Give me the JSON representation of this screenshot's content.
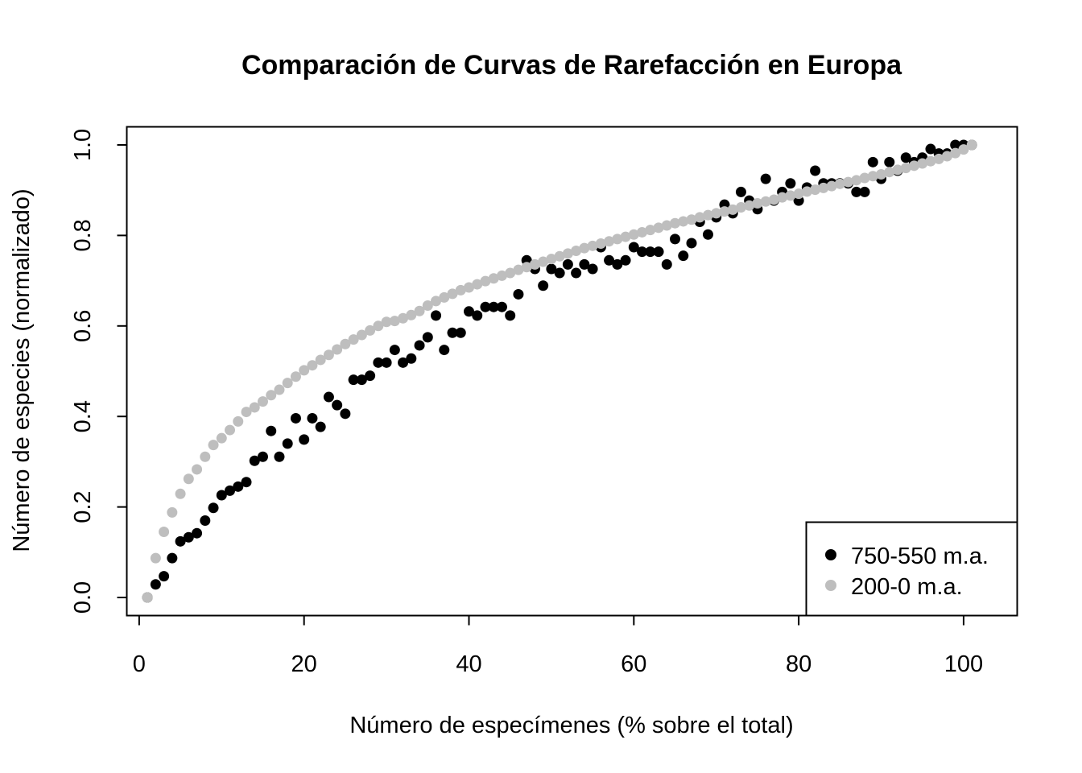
{
  "chart_data": {
    "type": "scatter",
    "title": "Comparación de Curvas de Rarefacción en Europa",
    "xlabel": "Número de especímenes (% sobre el total)",
    "ylabel": "Número de especies (normalizado)",
    "xlim": [
      -1.5,
      106.5
    ],
    "ylim": [
      -0.04,
      1.04
    ],
    "x_ticks": [
      0,
      20,
      40,
      60,
      80,
      100
    ],
    "x_tick_labels": [
      "0",
      "20",
      "40",
      "60",
      "80",
      "100"
    ],
    "y_ticks": [
      0.0,
      0.2,
      0.4,
      0.6,
      0.8,
      1.0
    ],
    "y_tick_labels": [
      "0.0",
      "0.2",
      "0.4",
      "0.6",
      "0.8",
      "1.0"
    ],
    "grid": false,
    "legend_position": "bottom-right",
    "series": [
      {
        "name": "750-550 m.a.",
        "color": "#000000",
        "x": [
          1,
          2,
          3,
          4,
          5,
          6,
          7,
          8,
          9,
          10,
          11,
          12,
          13,
          14,
          15,
          16,
          17,
          18,
          19,
          20,
          21,
          22,
          23,
          24,
          25,
          26,
          27,
          28,
          29,
          30,
          31,
          32,
          33,
          34,
          35,
          36,
          37,
          38,
          39,
          40,
          41,
          42,
          43,
          44,
          45,
          46,
          47,
          48,
          49,
          50,
          51,
          52,
          53,
          54,
          55,
          56,
          57,
          58,
          59,
          60,
          61,
          62,
          63,
          64,
          65,
          66,
          67,
          68,
          69,
          70,
          71,
          72,
          73,
          74,
          75,
          76,
          77,
          78,
          79,
          80,
          81,
          82,
          83,
          84,
          85,
          86,
          87,
          88,
          89,
          90,
          91,
          92,
          93,
          94,
          95,
          96,
          97,
          98,
          99,
          100,
          101
        ],
        "values": [
          0.0,
          0.029,
          0.047,
          0.087,
          0.124,
          0.133,
          0.142,
          0.17,
          0.198,
          0.226,
          0.236,
          0.245,
          0.255,
          0.302,
          0.311,
          0.368,
          0.311,
          0.34,
          0.396,
          0.349,
          0.396,
          0.377,
          0.443,
          0.425,
          0.406,
          0.481,
          0.481,
          0.49,
          0.519,
          0.519,
          0.547,
          0.519,
          0.528,
          0.557,
          0.575,
          0.623,
          0.547,
          0.585,
          0.585,
          0.632,
          0.623,
          0.642,
          0.642,
          0.642,
          0.623,
          0.67,
          0.745,
          0.726,
          0.689,
          0.726,
          0.717,
          0.736,
          0.717,
          0.736,
          0.726,
          0.774,
          0.745,
          0.736,
          0.745,
          0.774,
          0.764,
          0.764,
          0.764,
          0.736,
          0.792,
          0.755,
          0.783,
          0.83,
          0.802,
          0.84,
          0.868,
          0.849,
          0.896,
          0.877,
          0.858,
          0.925,
          0.877,
          0.896,
          0.915,
          0.877,
          0.906,
          0.943,
          0.915,
          0.915,
          0.915,
          0.915,
          0.896,
          0.896,
          0.962,
          0.925,
          0.962,
          0.943,
          0.972,
          0.962,
          0.972,
          0.991,
          0.981,
          0.981,
          1.0,
          1.0,
          1.0
        ]
      },
      {
        "name": "200-0 m.a.",
        "color": "#bebebe",
        "x": [
          1,
          2,
          3,
          4,
          5,
          6,
          7,
          8,
          9,
          10,
          11,
          12,
          13,
          14,
          15,
          16,
          17,
          18,
          19,
          20,
          21,
          22,
          23,
          24,
          25,
          26,
          27,
          28,
          29,
          30,
          31,
          32,
          33,
          34,
          35,
          36,
          37,
          38,
          39,
          40,
          41,
          42,
          43,
          44,
          45,
          46,
          47,
          48,
          49,
          50,
          51,
          52,
          53,
          54,
          55,
          56,
          57,
          58,
          59,
          60,
          61,
          62,
          63,
          64,
          65,
          66,
          67,
          68,
          69,
          70,
          71,
          72,
          73,
          74,
          75,
          76,
          77,
          78,
          79,
          80,
          81,
          82,
          83,
          84,
          85,
          86,
          87,
          88,
          89,
          90,
          91,
          92,
          93,
          94,
          95,
          96,
          97,
          98,
          99,
          100,
          101
        ],
        "values": [
          0.0,
          0.087,
          0.145,
          0.188,
          0.229,
          0.262,
          0.283,
          0.311,
          0.337,
          0.352,
          0.37,
          0.389,
          0.41,
          0.42,
          0.433,
          0.447,
          0.459,
          0.474,
          0.488,
          0.502,
          0.513,
          0.525,
          0.536,
          0.548,
          0.56,
          0.57,
          0.58,
          0.59,
          0.6,
          0.609,
          0.611,
          0.617,
          0.624,
          0.633,
          0.645,
          0.655,
          0.663,
          0.671,
          0.679,
          0.685,
          0.692,
          0.699,
          0.705,
          0.711,
          0.717,
          0.724,
          0.73,
          0.736,
          0.742,
          0.748,
          0.754,
          0.76,
          0.766,
          0.772,
          0.777,
          0.782,
          0.787,
          0.792,
          0.797,
          0.802,
          0.807,
          0.812,
          0.817,
          0.822,
          0.827,
          0.831,
          0.835,
          0.84,
          0.845,
          0.849,
          0.853,
          0.857,
          0.862,
          0.866,
          0.871,
          0.875,
          0.879,
          0.884,
          0.888,
          0.892,
          0.897,
          0.901,
          0.905,
          0.909,
          0.914,
          0.918,
          0.922,
          0.927,
          0.931,
          0.935,
          0.94,
          0.945,
          0.949,
          0.954,
          0.959,
          0.964,
          0.969,
          0.975,
          0.982,
          0.99,
          1.0
        ]
      }
    ]
  }
}
